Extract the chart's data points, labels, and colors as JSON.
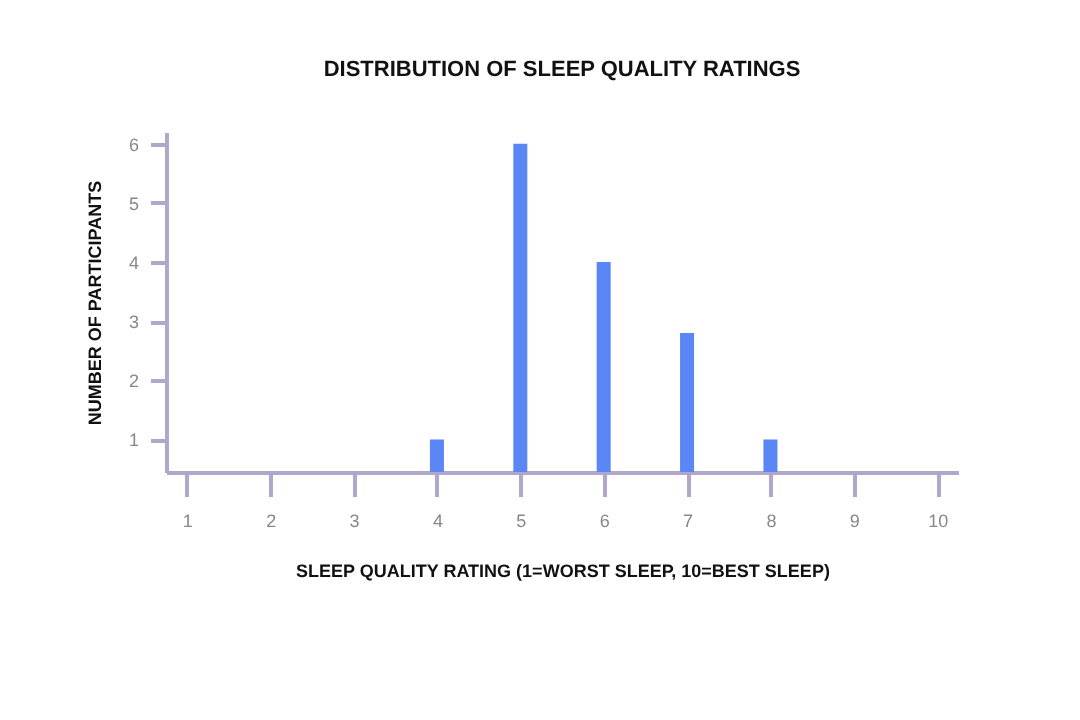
{
  "chart_data": {
    "type": "bar",
    "title": "DISTRIBUTION OF SLEEP QUALITY RATINGS",
    "xlabel": "SLEEP QUALITY RATING (1=WORST SLEEP, 10=BEST SLEEP)",
    "ylabel": "NUMBER OF PARTICIPANTS",
    "x": [
      4,
      5,
      6,
      7,
      8
    ],
    "values": [
      1,
      6,
      4,
      2.8,
      1
    ],
    "color": "#5b86f5",
    "xlim": [
      0.75,
      10.25
    ],
    "xticks": [
      1,
      2,
      3,
      4,
      5,
      6,
      7,
      8,
      9,
      10
    ],
    "ylim": [
      0.45,
      6.2
    ],
    "yticks": [
      1,
      2,
      3,
      4,
      5,
      6
    ],
    "grid": false
  }
}
